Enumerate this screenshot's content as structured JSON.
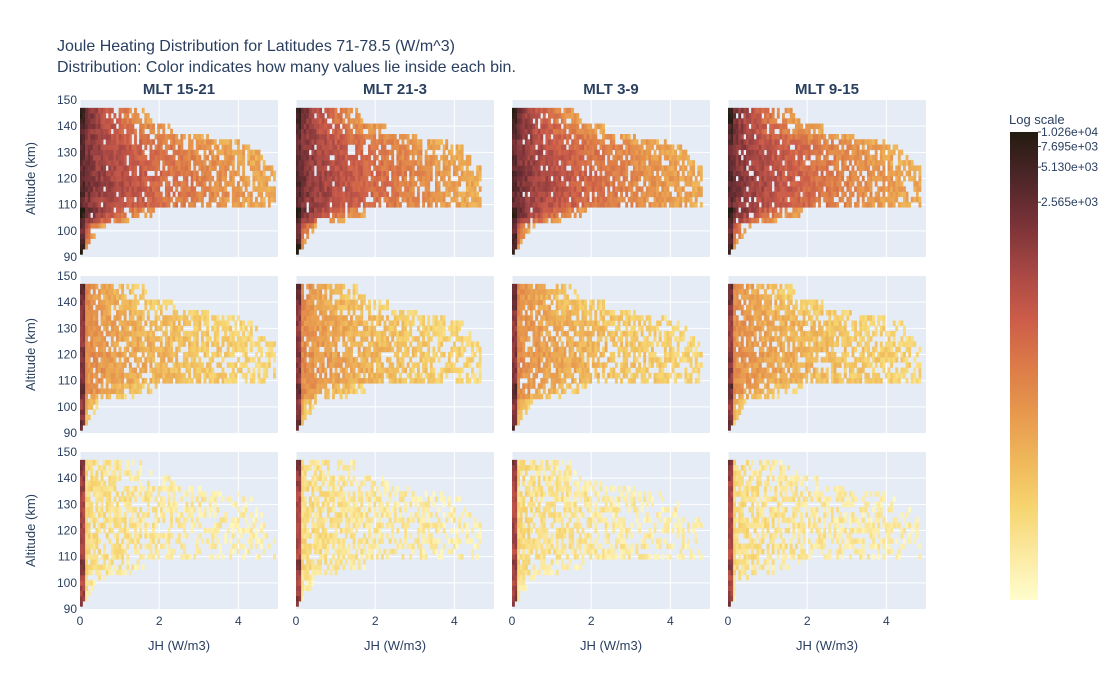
{
  "title_line1": "Joule Heating Distribution for Latitudes 71-78.5 (W/m^3)",
  "title_line2": "Distribution: Color indicates how many values lie inside each bin.",
  "chart_data": {
    "type": "heatmap",
    "layout": "3 rows x 4 columns of 2D histograms",
    "columns": [
      "MLT 15-21",
      "MLT 21-3",
      "MLT 3-9",
      "MLT 9-15"
    ],
    "xlabel": "JH (W/m3)",
    "ylabel": "Altitude (km)",
    "xlim": [
      0,
      5
    ],
    "ylim": [
      90,
      150
    ],
    "x_ticks": [
      "0",
      "2",
      "4"
    ],
    "y_ticks": [
      "90",
      "100",
      "110",
      "120",
      "130",
      "140",
      "150"
    ],
    "grid": true,
    "colorbar": {
      "title": "Log scale",
      "range": [
        1,
        10260
      ],
      "scale": "log",
      "ticks": [
        "1.026e+04",
        "7.695e+03",
        "5.130e+03",
        "2.565e+03"
      ],
      "colors": [
        "#fffdcd",
        "#fbe9a0",
        "#f6d46f",
        "#efb75a",
        "#e7984d",
        "#dc7b48",
        "#cc5c49",
        "#a84844",
        "#7b3338",
        "#4e2629",
        "#231b10"
      ]
    },
    "row_density": [
      1.0,
      0.55,
      0.22
    ],
    "column_extent": [
      1.0,
      0.95,
      0.97,
      0.99
    ],
    "altitude_bands": [
      {
        "alt_min": 91,
        "alt_max": 93,
        "max_jh": 0.05,
        "peak": 1.0
      },
      {
        "alt_min": 93,
        "alt_max": 95,
        "max_jh": 0.15,
        "peak": 0.95
      },
      {
        "alt_min": 95,
        "alt_max": 97,
        "max_jh": 0.25,
        "peak": 0.9
      },
      {
        "alt_min": 97,
        "alt_max": 99,
        "max_jh": 0.35,
        "peak": 0.88
      },
      {
        "alt_min": 99,
        "alt_max": 101,
        "max_jh": 0.45,
        "peak": 0.85
      },
      {
        "alt_min": 101,
        "alt_max": 103,
        "max_jh": 0.6,
        "peak": 0.85
      },
      {
        "alt_min": 103,
        "alt_max": 105,
        "max_jh": 1.3,
        "peak": 0.9
      },
      {
        "alt_min": 105,
        "alt_max": 107,
        "max_jh": 1.8,
        "peak": 0.95
      },
      {
        "alt_min": 107,
        "alt_max": 109,
        "max_jh": 1.9,
        "peak": 1.0
      },
      {
        "alt_min": 109,
        "alt_max": 111,
        "max_jh": 4.9,
        "peak": 0.85
      },
      {
        "alt_min": 111,
        "alt_max": 113,
        "max_jh": 4.9,
        "peak": 0.85
      },
      {
        "alt_min": 113,
        "alt_max": 115,
        "max_jh": 4.9,
        "peak": 0.88
      },
      {
        "alt_min": 115,
        "alt_max": 117,
        "max_jh": 4.9,
        "peak": 0.88
      },
      {
        "alt_min": 117,
        "alt_max": 119,
        "max_jh": 4.9,
        "peak": 0.88
      },
      {
        "alt_min": 119,
        "alt_max": 121,
        "max_jh": 4.9,
        "peak": 0.88
      },
      {
        "alt_min": 121,
        "alt_max": 123,
        "max_jh": 4.9,
        "peak": 0.88
      },
      {
        "alt_min": 123,
        "alt_max": 125,
        "max_jh": 4.9,
        "peak": 0.86
      },
      {
        "alt_min": 125,
        "alt_max": 127,
        "max_jh": 4.7,
        "peak": 0.86
      },
      {
        "alt_min": 127,
        "alt_max": 129,
        "max_jh": 4.6,
        "peak": 0.86
      },
      {
        "alt_min": 129,
        "alt_max": 131,
        "max_jh": 4.5,
        "peak": 0.86
      },
      {
        "alt_min": 131,
        "alt_max": 133,
        "max_jh": 4.4,
        "peak": 0.86
      },
      {
        "alt_min": 133,
        "alt_max": 135,
        "max_jh": 4.0,
        "peak": 0.86
      },
      {
        "alt_min": 135,
        "alt_max": 137,
        "max_jh": 3.2,
        "peak": 0.88
      },
      {
        "alt_min": 137,
        "alt_max": 139,
        "max_jh": 2.4,
        "peak": 0.9
      },
      {
        "alt_min": 139,
        "alt_max": 141,
        "max_jh": 2.4,
        "peak": 0.92
      },
      {
        "alt_min": 141,
        "alt_max": 143,
        "max_jh": 1.8,
        "peak": 0.94
      },
      {
        "alt_min": 143,
        "alt_max": 145,
        "max_jh": 1.7,
        "peak": 0.96
      },
      {
        "alt_min": 145,
        "alt_max": 147,
        "max_jh": 1.6,
        "peak": 0.98
      }
    ]
  }
}
